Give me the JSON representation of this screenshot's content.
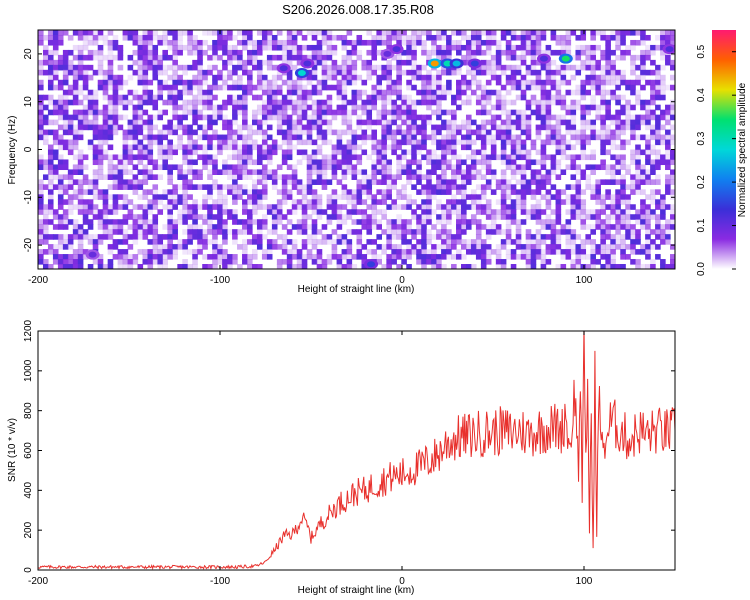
{
  "title": "S206.2026.008.17.35.R08",
  "chart_data": [
    {
      "type": "heatmap",
      "xlabel": "Height of straight line (km)",
      "ylabel": "Frequency (Hz)",
      "xlim": [
        -200,
        150
      ],
      "ylim": [
        -25,
        25
      ],
      "xticks": [
        -200,
        -100,
        0,
        100
      ],
      "yticks": [
        20,
        10,
        0,
        -10,
        -20
      ],
      "grid": false,
      "colorbar": {
        "label": "Normalized spectral amplitude",
        "range": [
          0.0,
          0.55
        ],
        "ticks": [
          0.0,
          0.1,
          0.2,
          0.3,
          0.4,
          0.5
        ],
        "tick_labels": [
          "0.0",
          "0.1",
          "0.2",
          "0.3",
          "0.4",
          "0.5"
        ],
        "colormap": [
          "#ffffff",
          "#8a2be2",
          "#3a2fd8",
          "#1080f0",
          "#00d8d8",
          "#00e070",
          "#e8e000",
          "#ff6000",
          "#ff1a70"
        ]
      },
      "background_level": 0.05,
      "hotspots": [
        {
          "x": -55,
          "y": 16,
          "value": 0.28
        },
        {
          "x": -52,
          "y": 18,
          "value": 0.12
        },
        {
          "x": -65,
          "y": 17,
          "value": 0.12
        },
        {
          "x": -8,
          "y": 20,
          "value": 0.1
        },
        {
          "x": -3,
          "y": 21,
          "value": 0.12
        },
        {
          "x": 18,
          "y": 18,
          "value": 0.45
        },
        {
          "x": 25,
          "y": 18,
          "value": 0.3
        },
        {
          "x": 30,
          "y": 18,
          "value": 0.25
        },
        {
          "x": 40,
          "y": 18,
          "value": 0.15
        },
        {
          "x": 78,
          "y": 19,
          "value": 0.12
        },
        {
          "x": 90,
          "y": 19,
          "value": 0.35
        },
        {
          "x": 147,
          "y": 21,
          "value": 0.12
        },
        {
          "x": -17,
          "y": -24,
          "value": 0.15
        },
        {
          "x": -170,
          "y": -22,
          "value": 0.1
        }
      ]
    },
    {
      "type": "line",
      "xlabel": "Height of straight line (km)",
      "ylabel": "SNR (10 * v/v)",
      "xlim": [
        -200,
        150
      ],
      "ylim": [
        0,
        1200
      ],
      "xticks": [
        -200,
        -100,
        0,
        100
      ],
      "yticks": [
        0,
        200,
        400,
        600,
        800,
        1000,
        1200
      ],
      "grid": false,
      "series": [
        {
          "color": "#e8302c",
          "x": [
            -200,
            -180,
            -160,
            -140,
            -120,
            -100,
            -90,
            -80,
            -75,
            -70,
            -65,
            -60,
            -55,
            -52,
            -50,
            -45,
            -40,
            -35,
            -30,
            -25,
            -20,
            -15,
            -10,
            -5,
            0,
            5,
            10,
            15,
            20,
            25,
            30,
            35,
            40,
            45,
            50,
            55,
            60,
            65,
            70,
            75,
            80,
            85,
            88,
            90,
            92,
            95,
            97,
            98,
            99,
            100,
            101,
            102,
            103,
            104,
            105,
            106,
            107,
            108,
            110,
            115,
            120,
            125,
            130,
            135,
            140,
            145,
            150
          ],
          "y": [
            15,
            15,
            15,
            15,
            15,
            15,
            15,
            20,
            40,
            100,
            170,
            180,
            260,
            220,
            160,
            230,
            280,
            330,
            360,
            390,
            400,
            430,
            450,
            470,
            480,
            500,
            520,
            550,
            580,
            640,
            660,
            670,
            680,
            690,
            690,
            700,
            690,
            700,
            680,
            700,
            710,
            720,
            700,
            800,
            600,
            900,
            500,
            1000,
            300,
            1150,
            600,
            900,
            200,
            800,
            100,
            1000,
            150,
            900,
            600,
            750,
            700,
            650,
            700,
            680,
            700,
            690,
            700
          ]
        }
      ]
    }
  ]
}
